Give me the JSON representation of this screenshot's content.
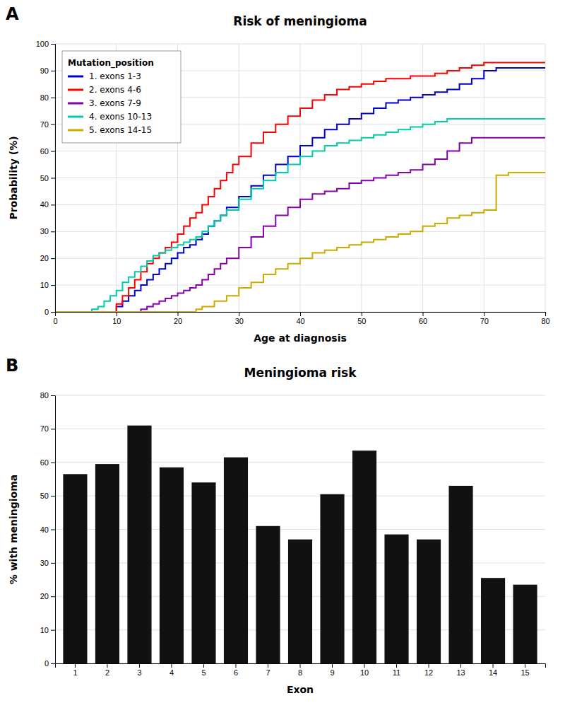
{
  "chart_data": [
    {
      "type": "step",
      "title": "Risk of meningioma",
      "xlabel": "Age at diagnosis",
      "ylabel": "Probability (%)",
      "annotations": [
        "A"
      ],
      "legend_title": "Mutation_position",
      "legend": "upper-left",
      "grid": true,
      "xlim": [
        0,
        80
      ],
      "xticks": [
        0,
        10,
        20,
        30,
        40,
        50,
        60,
        70,
        80
      ],
      "ylim": [
        0,
        100
      ],
      "yticks": [
        0,
        10,
        20,
        30,
        40,
        50,
        60,
        70,
        80,
        90,
        100
      ],
      "series": [
        {
          "name": "1. exons 1-3",
          "color": "#0000cc",
          "x": [
            0,
            9,
            10,
            11,
            12,
            13,
            14,
            15,
            16,
            17,
            18,
            19,
            20,
            21,
            22,
            23,
            24,
            25,
            26,
            27,
            28,
            30,
            32,
            34,
            36,
            38,
            40,
            42,
            44,
            46,
            48,
            50,
            52,
            54,
            56,
            58,
            60,
            62,
            64,
            66,
            68,
            70,
            72,
            80
          ],
          "values": [
            0,
            0,
            2,
            4,
            6,
            8,
            10,
            12,
            14,
            16,
            18,
            20,
            22,
            24,
            25,
            27,
            29,
            32,
            34,
            36,
            39,
            43,
            47,
            51,
            55,
            58,
            62,
            65,
            68,
            70,
            72,
            74,
            76,
            78,
            79,
            80,
            81,
            82,
            83,
            85,
            87,
            90,
            91,
            91
          ]
        },
        {
          "name": "2. exons 4-6",
          "color": "#ff0000",
          "x": [
            0,
            9,
            10,
            11,
            12,
            13,
            14,
            15,
            16,
            17,
            18,
            19,
            20,
            21,
            22,
            23,
            24,
            25,
            26,
            27,
            28,
            29,
            30,
            32,
            34,
            36,
            38,
            40,
            42,
            44,
            46,
            48,
            50,
            52,
            54,
            56,
            58,
            60,
            62,
            64,
            66,
            68,
            70,
            72,
            80
          ],
          "values": [
            0,
            0,
            3,
            6,
            9,
            12,
            15,
            18,
            20,
            22,
            24,
            26,
            29,
            32,
            35,
            37,
            40,
            43,
            46,
            49,
            52,
            55,
            58,
            63,
            67,
            70,
            73,
            76,
            79,
            81,
            83,
            84,
            85,
            86,
            87,
            87,
            88,
            88,
            89,
            90,
            91,
            92,
            93,
            93,
            93
          ]
        },
        {
          "name": "3. exons 7-9",
          "color": "#8800aa",
          "x": [
            0,
            13,
            14,
            15,
            16,
            17,
            18,
            19,
            20,
            21,
            22,
            23,
            24,
            25,
            26,
            27,
            28,
            30,
            32,
            34,
            36,
            38,
            40,
            42,
            44,
            46,
            48,
            50,
            52,
            54,
            56,
            58,
            60,
            62,
            64,
            66,
            68,
            70,
            80
          ],
          "values": [
            0,
            0,
            1,
            2,
            3,
            4,
            5,
            6,
            7,
            8,
            9,
            10,
            12,
            14,
            16,
            18,
            20,
            24,
            28,
            32,
            36,
            39,
            42,
            44,
            45,
            46,
            48,
            49,
            50,
            51,
            52,
            53,
            55,
            57,
            60,
            63,
            65,
            65,
            65
          ]
        },
        {
          "name": "4. exons 10-13",
          "color": "#00ccaa",
          "x": [
            0,
            5,
            6,
            7,
            8,
            9,
            10,
            11,
            12,
            13,
            14,
            15,
            16,
            17,
            18,
            19,
            20,
            21,
            22,
            23,
            24,
            25,
            26,
            27,
            28,
            30,
            32,
            34,
            36,
            38,
            40,
            42,
            44,
            46,
            48,
            50,
            52,
            54,
            56,
            58,
            60,
            62,
            64,
            66,
            68,
            70,
            80
          ],
          "values": [
            0,
            0,
            1,
            2,
            4,
            6,
            8,
            11,
            13,
            15,
            17,
            19,
            21,
            22,
            23,
            24,
            25,
            26,
            27,
            28,
            30,
            32,
            34,
            36,
            38,
            42,
            46,
            49,
            52,
            55,
            58,
            60,
            62,
            63,
            64,
            65,
            66,
            67,
            68,
            69,
            70,
            71,
            72,
            72,
            72,
            72,
            72
          ]
        },
        {
          "name": "5. exons 14-15",
          "color": "#ccaa00",
          "x": [
            0,
            22,
            23,
            24,
            26,
            28,
            30,
            32,
            34,
            36,
            38,
            40,
            42,
            44,
            46,
            48,
            50,
            52,
            54,
            56,
            58,
            60,
            62,
            64,
            66,
            68,
            70,
            72,
            74,
            76,
            78,
            80
          ],
          "values": [
            0,
            0,
            1,
            2,
            4,
            6,
            9,
            11,
            14,
            16,
            18,
            20,
            22,
            23,
            24,
            25,
            26,
            27,
            28,
            29,
            30,
            32,
            33,
            35,
            36,
            37,
            38,
            51,
            52,
            52,
            52,
            52
          ]
        }
      ]
    },
    {
      "type": "bar",
      "title": "Meningioma risk",
      "xlabel": "Exon",
      "ylabel": "% with meningioma",
      "annotations": [
        "B"
      ],
      "grid": true,
      "categories": [
        "1",
        "2",
        "3",
        "4",
        "5",
        "6",
        "7",
        "8",
        "9",
        "10",
        "11",
        "12",
        "13",
        "14",
        "15"
      ],
      "values": [
        56.5,
        59.5,
        71.0,
        58.5,
        54.0,
        61.5,
        41.0,
        37.0,
        50.5,
        63.5,
        38.5,
        37.0,
        53.0,
        25.5,
        23.5
      ],
      "color": "#111111",
      "ylim": [
        0,
        80
      ],
      "yticks": [
        0,
        10,
        20,
        30,
        40,
        50,
        60,
        70,
        80
      ]
    }
  ]
}
